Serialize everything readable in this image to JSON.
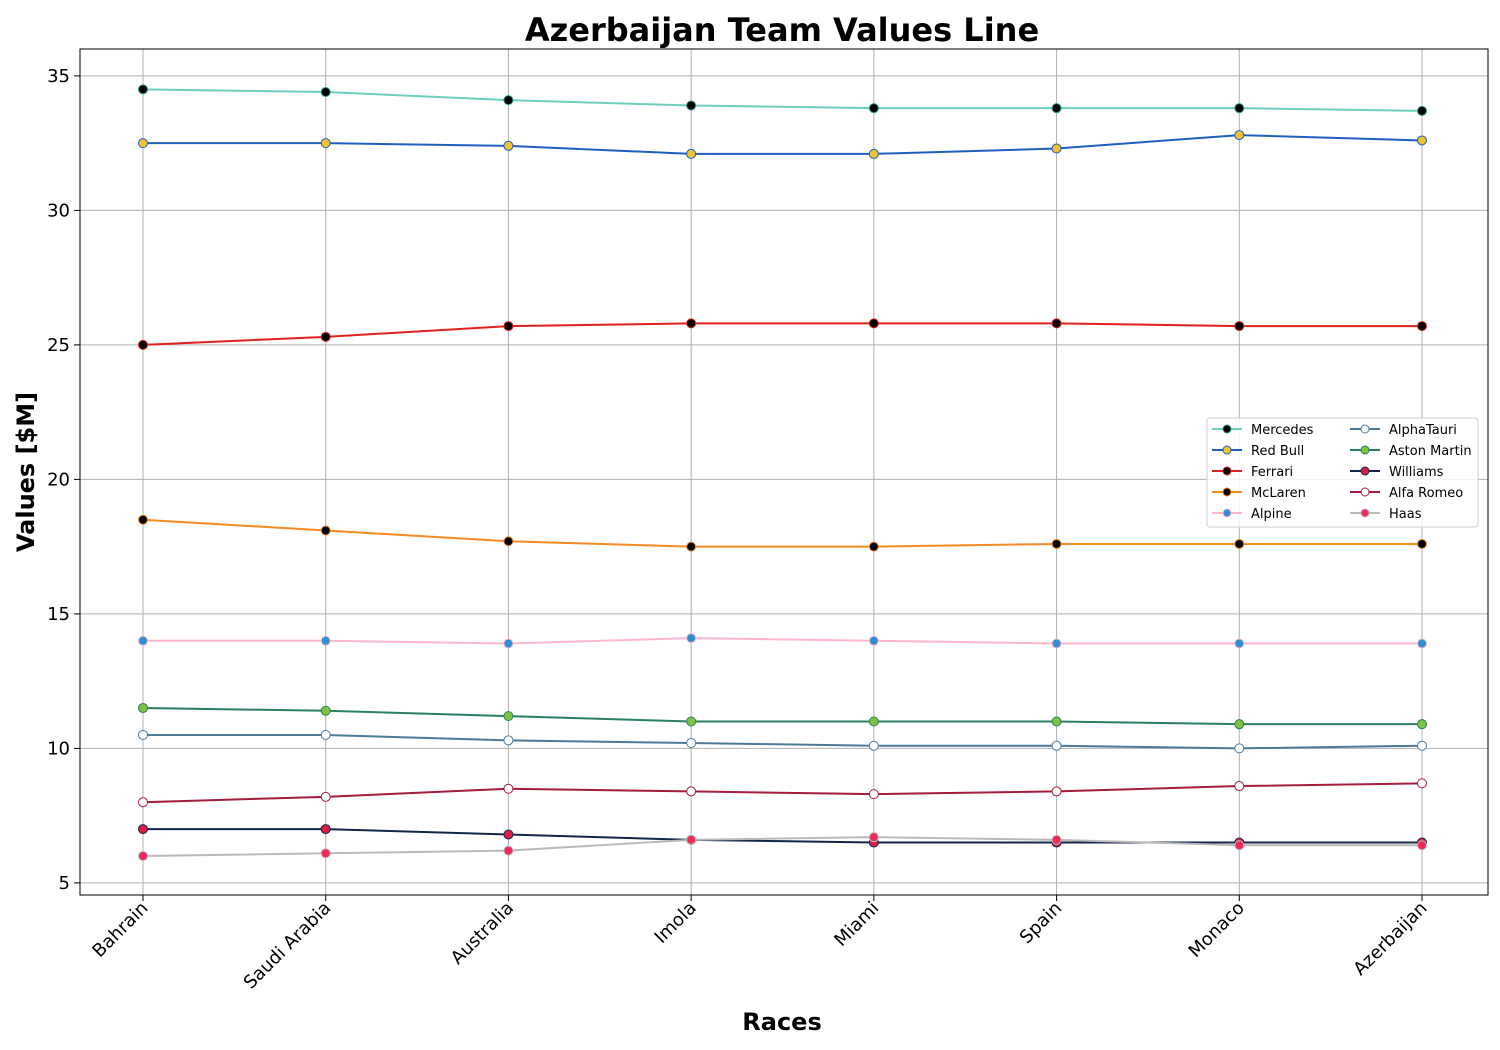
{
  "chart_data": {
    "type": "line",
    "title": "Azerbaijan Team Values Line",
    "xlabel": "Races",
    "ylabel": "Values [$M]",
    "categories": [
      "Bahrain",
      "Saudi Arabia",
      "Australia",
      "Imola",
      "Miami",
      "Spain",
      "Monaco",
      "Azerbaijan"
    ],
    "ylim": [
      4.55,
      36.0
    ],
    "yticks": [
      5,
      10,
      15,
      20,
      25,
      30,
      35
    ],
    "grid": true,
    "legend_position": "center-right",
    "legend_columns": 2,
    "series": [
      {
        "name": "Mercedes",
        "color": "#6fcfbd",
        "marker_fill": "#000000",
        "marker_edge": "#2a9d8f",
        "values": [
          34.5,
          34.4,
          34.1,
          33.9,
          33.8,
          33.8,
          33.8,
          33.7
        ]
      },
      {
        "name": "Red Bull",
        "color": "#1f5fbf",
        "marker_fill": "#f2c230",
        "marker_edge": "#1f5fbf",
        "values": [
          32.5,
          32.5,
          32.4,
          32.1,
          32.1,
          32.3,
          32.8,
          32.6
        ]
      },
      {
        "name": "Ferrari",
        "color": "#e32020",
        "marker_fill": "#000000",
        "marker_edge": "#e32020",
        "values": [
          25.0,
          25.3,
          25.7,
          25.8,
          25.8,
          25.8,
          25.7,
          25.7
        ]
      },
      {
        "name": "McLaren",
        "color": "#f58a25",
        "marker_fill": "#000000",
        "marker_edge": "#f58a25",
        "values": [
          18.5,
          18.1,
          17.7,
          17.5,
          17.5,
          17.6,
          17.6,
          17.6
        ]
      },
      {
        "name": "Alpine",
        "color": "#ffb6c8",
        "marker_fill": "#2f8fd5",
        "marker_edge": "#ffb6c8",
        "values": [
          14.0,
          14.0,
          13.9,
          14.1,
          14.0,
          13.9,
          13.9,
          13.9
        ]
      },
      {
        "name": "AlphaTauri",
        "color": "#4e7a9a",
        "marker_fill": "#ffffff",
        "marker_edge": "#4e7a9a",
        "values": [
          10.5,
          10.5,
          10.3,
          10.2,
          10.1,
          10.1,
          10.0,
          10.1
        ]
      },
      {
        "name": "Aston Martin",
        "color": "#2b8060",
        "marker_fill": "#7dc242",
        "marker_edge": "#2b8060",
        "values": [
          11.5,
          11.4,
          11.2,
          11.0,
          11.0,
          11.0,
          10.9,
          10.9
        ]
      },
      {
        "name": "Williams",
        "color": "#12264a",
        "marker_fill": "#dc1e45",
        "marker_edge": "#12264a",
        "values": [
          7.0,
          7.0,
          6.8,
          6.6,
          6.5,
          6.5,
          6.5,
          6.5
        ]
      },
      {
        "name": "Alfa Romeo",
        "color": "#a51c3c",
        "marker_fill": "#ffffff",
        "marker_edge": "#a51c3c",
        "values": [
          8.0,
          8.2,
          8.5,
          8.4,
          8.3,
          8.4,
          8.6,
          8.7
        ]
      },
      {
        "name": "Haas",
        "color": "#b9b9b9",
        "marker_fill": "#ee2a5a",
        "marker_edge": "#b9b9b9",
        "values": [
          6.0,
          6.1,
          6.2,
          6.6,
          6.7,
          6.6,
          6.4,
          6.4
        ]
      }
    ]
  }
}
